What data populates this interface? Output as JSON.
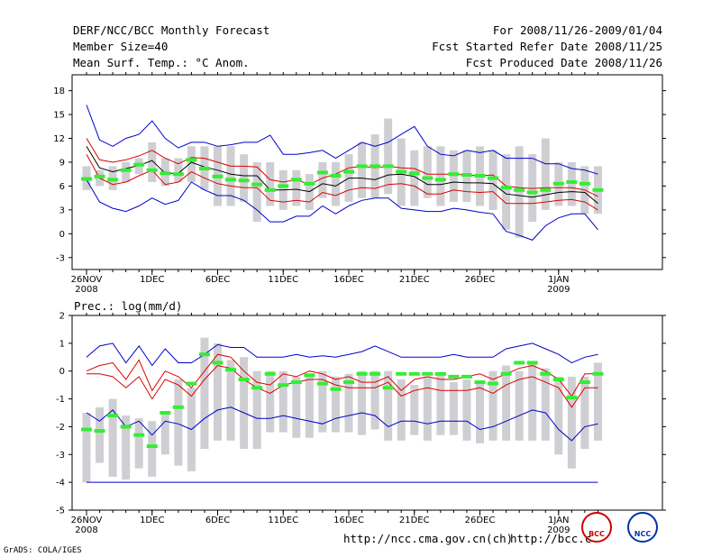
{
  "header": {
    "title": "DERF/NCC/BCC Monthly Forecast",
    "member_size": "Member Size=40",
    "variable": "Mean Surf. Temp.: °C Anom.",
    "period": "For 2008/11/26-2009/01/04",
    "started": "Fcst Started Refer Date 2008/11/25",
    "produced": "Fcst Produced Date 2008/11/26"
  },
  "footer": {
    "url1": "http://ncc.cma.gov.cn(ch)",
    "url2": "http://bcc.c",
    "grads": "GrADS: COLA/IGES",
    "logo1": "BCC",
    "logo2": "NCC"
  },
  "colors": {
    "max": "#0000cc",
    "pct": "#dd0000",
    "mean": "#000000",
    "obs": "#33ee33",
    "bar": "#cfcfd3",
    "base": "#0000cc"
  },
  "chart_data": [
    {
      "type": "box-line",
      "title": "Mean Surf. Temp.: °C Anom.",
      "xlabel": "",
      "ylabel": "°C Anom.",
      "ylim": [
        -4.5,
        20
      ],
      "yticks": [
        "18",
        "15",
        "12",
        "9",
        "6",
        "3",
        "0",
        "-3"
      ],
      "yvalues": [
        18,
        15,
        12,
        9,
        6,
        3,
        0,
        -3
      ],
      "xticks": [
        {
          "day": 0,
          "label": "26NOV",
          "sub": "2008"
        },
        {
          "day": 5,
          "label": "1DEC",
          "sub": ""
        },
        {
          "day": 10,
          "label": "6DEC",
          "sub": ""
        },
        {
          "day": 15,
          "label": "11DEC",
          "sub": ""
        },
        {
          "day": 20,
          "label": "16DEC",
          "sub": ""
        },
        {
          "day": 25,
          "label": "21DEC",
          "sub": ""
        },
        {
          "day": 30,
          "label": "26DEC",
          "sub": ""
        },
        {
          "day": 36,
          "label": "1JAN",
          "sub": "2009"
        }
      ],
      "n_days": 40,
      "series": [
        {
          "name": "max",
          "values": [
            16.2,
            11.8,
            11.0,
            12.0,
            12.5,
            14.2,
            12.0,
            10.8,
            11.5,
            11.5,
            11.0,
            11.2,
            11.5,
            11.5,
            12.4,
            10.0,
            10.0,
            10.2,
            10.5,
            9.5,
            10.5,
            11.5,
            11.0,
            11.5,
            12.5,
            13.5,
            11.0,
            10.0,
            9.8,
            10.5,
            10.2,
            10.5,
            9.5,
            9.5,
            9.5,
            8.8,
            8.8,
            8.2,
            8.0,
            7.5
          ]
        },
        {
          "name": "upper",
          "values": [
            12.0,
            9.3,
            9.0,
            9.3,
            9.8,
            10.5,
            9.5,
            8.8,
            9.6,
            9.5,
            9.0,
            8.5,
            8.5,
            8.4,
            6.8,
            6.5,
            6.8,
            6.2,
            7.0,
            7.5,
            8.3,
            8.5,
            8.3,
            8.5,
            8.3,
            8.2,
            7.5,
            7.5,
            7.5,
            7.4,
            7.3,
            7.4,
            6.0,
            5.8,
            5.7,
            5.8,
            5.8,
            5.8,
            5.5,
            4.7
          ]
        },
        {
          "name": "mean",
          "values": [
            11.0,
            8.3,
            7.8,
            8.2,
            8.6,
            9.2,
            7.6,
            7.6,
            9.0,
            8.4,
            8.0,
            7.5,
            7.3,
            7.3,
            5.5,
            5.5,
            5.6,
            5.3,
            6.3,
            6.0,
            7.0,
            7.0,
            6.8,
            7.4,
            7.5,
            7.2,
            6.2,
            6.2,
            6.5,
            6.4,
            6.4,
            6.3,
            5.0,
            4.8,
            4.6,
            4.9,
            5.2,
            5.3,
            5.2,
            3.8
          ]
        },
        {
          "name": "lower",
          "values": [
            10.0,
            7.0,
            6.2,
            6.5,
            7.3,
            8.0,
            6.2,
            6.5,
            7.8,
            7.0,
            6.3,
            6.0,
            5.8,
            5.8,
            4.2,
            4.0,
            4.2,
            4.0,
            5.2,
            4.8,
            5.5,
            5.8,
            5.7,
            6.2,
            6.3,
            6.0,
            5.0,
            5.0,
            5.5,
            5.3,
            5.2,
            5.3,
            3.8,
            3.8,
            3.8,
            4.0,
            4.2,
            4.3,
            4.0,
            3.0
          ]
        },
        {
          "name": "min",
          "values": [
            6.8,
            4.0,
            3.2,
            2.8,
            3.5,
            4.5,
            3.7,
            4.2,
            6.5,
            5.5,
            4.8,
            4.8,
            4.2,
            3.0,
            1.5,
            1.5,
            2.2,
            2.2,
            3.5,
            2.5,
            3.5,
            4.2,
            4.5,
            4.5,
            3.2,
            3.0,
            2.8,
            2.8,
            3.2,
            3.0,
            2.7,
            2.5,
            0.3,
            -0.2,
            -0.8,
            1.0,
            2.0,
            2.5,
            2.5,
            0.5
          ]
        },
        {
          "name": "obs",
          "values": [
            6.9,
            7.2,
            6.8,
            8.0,
            8.7,
            8.0,
            7.6,
            7.5,
            9.3,
            8.2,
            7.2,
            6.8,
            6.7,
            6.2,
            5.5,
            6.0,
            6.8,
            6.3,
            7.7,
            7.3,
            7.8,
            8.5,
            8.5,
            8.5,
            7.8,
            7.6,
            7.0,
            6.8,
            7.5,
            7.4,
            7.3,
            7.0,
            5.8,
            5.5,
            5.2,
            5.5,
            6.3,
            6.5,
            6.3,
            5.5
          ]
        }
      ],
      "bars": [
        [
          5.5,
          8.5
        ],
        [
          6.0,
          8.0
        ],
        [
          5.5,
          8.5
        ],
        [
          6.5,
          9.0
        ],
        [
          7.5,
          9.5
        ],
        [
          6.5,
          11.5
        ],
        [
          6.0,
          9.5
        ],
        [
          6.5,
          9.5
        ],
        [
          6.5,
          11.0
        ],
        [
          5.5,
          11.0
        ],
        [
          3.5,
          11.0
        ],
        [
          3.5,
          11.0
        ],
        [
          4.0,
          10.0
        ],
        [
          1.5,
          9.0
        ],
        [
          3.5,
          9.0
        ],
        [
          3.0,
          8.0
        ],
        [
          3.5,
          8.0
        ],
        [
          3.0,
          7.5
        ],
        [
          4.5,
          9.0
        ],
        [
          3.5,
          9.0
        ],
        [
          4.0,
          10.0
        ],
        [
          4.5,
          11.5
        ],
        [
          4.5,
          12.5
        ],
        [
          5.0,
          14.5
        ],
        [
          3.5,
          12.0
        ],
        [
          3.5,
          10.5
        ],
        [
          4.5,
          11.0
        ],
        [
          3.5,
          11.0
        ],
        [
          4.0,
          10.5
        ],
        [
          4.0,
          10.5
        ],
        [
          3.5,
          11.0
        ],
        [
          3.0,
          10.5
        ],
        [
          0.5,
          10.0
        ],
        [
          -0.5,
          11.0
        ],
        [
          1.5,
          10.0
        ],
        [
          3.0,
          12.0
        ],
        [
          3.5,
          9.0
        ],
        [
          3.5,
          9.0
        ],
        [
          2.5,
          8.5
        ],
        [
          2.5,
          8.5
        ]
      ]
    },
    {
      "type": "box-line",
      "title": "Prec.: log(mm/d)",
      "xlabel": "",
      "ylabel": "log(mm/d)",
      "ylim": [
        -5,
        2
      ],
      "yticks": [
        "2",
        "1",
        "0",
        "-1",
        "-2",
        "-3",
        "-4",
        "-5"
      ],
      "yvalues": [
        2,
        1,
        0,
        -1,
        -2,
        -3,
        -4,
        -5
      ],
      "xticks": [
        {
          "day": 0,
          "label": "26NOV",
          "sub": "2008"
        },
        {
          "day": 5,
          "label": "1DEC",
          "sub": ""
        },
        {
          "day": 10,
          "label": "6DEC",
          "sub": ""
        },
        {
          "day": 15,
          "label": "11DEC",
          "sub": ""
        },
        {
          "day": 20,
          "label": "16DEC",
          "sub": ""
        },
        {
          "day": 25,
          "label": "21DEC",
          "sub": ""
        },
        {
          "day": 30,
          "label": "26DEC",
          "sub": ""
        },
        {
          "day": 36,
          "label": "1JAN",
          "sub": "2009"
        }
      ],
      "n_days": 40,
      "baseline": -4,
      "series": [
        {
          "name": "max",
          "values": [
            0.5,
            0.9,
            1.0,
            0.3,
            0.9,
            0.2,
            0.8,
            0.3,
            0.3,
            0.6,
            0.95,
            0.85,
            0.85,
            0.5,
            0.5,
            0.5,
            0.6,
            0.5,
            0.55,
            0.5,
            0.6,
            0.7,
            0.9,
            0.7,
            0.5,
            0.5,
            0.5,
            0.5,
            0.6,
            0.5,
            0.5,
            0.5,
            0.8,
            0.9,
            1.0,
            0.8,
            0.6,
            0.3,
            0.5,
            0.6
          ]
        },
        {
          "name": "upper",
          "values": [
            0.0,
            0.2,
            0.3,
            -0.3,
            0.4,
            -0.7,
            0.0,
            -0.2,
            -0.6,
            0.0,
            0.6,
            0.5,
            0.0,
            -0.4,
            -0.5,
            -0.1,
            -0.2,
            0.0,
            -0.1,
            -0.3,
            -0.2,
            -0.4,
            -0.4,
            -0.2,
            -0.7,
            -0.3,
            -0.2,
            -0.3,
            -0.3,
            -0.2,
            -0.1,
            -0.3,
            -0.1,
            0.1,
            0.2,
            0.0,
            -0.3,
            -0.9,
            -0.1,
            -0.1
          ]
        },
        {
          "name": "lower",
          "values": [
            -0.1,
            -0.1,
            -0.2,
            -0.6,
            -0.2,
            -1.0,
            -0.3,
            -0.5,
            -0.9,
            -0.3,
            0.2,
            0.1,
            -0.3,
            -0.6,
            -0.8,
            -0.5,
            -0.4,
            -0.3,
            -0.3,
            -0.5,
            -0.6,
            -0.6,
            -0.6,
            -0.4,
            -0.9,
            -0.7,
            -0.6,
            -0.7,
            -0.7,
            -0.7,
            -0.6,
            -0.8,
            -0.5,
            -0.3,
            -0.2,
            -0.4,
            -0.6,
            -1.3,
            -0.6,
            -0.6
          ]
        },
        {
          "name": "min",
          "values": [
            -1.5,
            -1.8,
            -1.4,
            -2.0,
            -1.8,
            -2.3,
            -1.8,
            -1.9,
            -2.1,
            -1.7,
            -1.4,
            -1.3,
            -1.5,
            -1.7,
            -1.7,
            -1.6,
            -1.7,
            -1.8,
            -1.9,
            -1.7,
            -1.6,
            -1.5,
            -1.6,
            -2.0,
            -1.8,
            -1.8,
            -1.9,
            -1.8,
            -1.8,
            -1.8,
            -2.1,
            -2.0,
            -1.8,
            -1.6,
            -1.4,
            -1.5,
            -2.1,
            -2.5,
            -2.0,
            -1.9
          ]
        },
        {
          "name": "obs",
          "values": [
            -2.1,
            -2.15,
            -1.6,
            -2.0,
            -2.3,
            -2.7,
            -1.5,
            -1.3,
            -0.45,
            0.6,
            0.3,
            0.05,
            -0.3,
            -0.6,
            -0.1,
            -0.5,
            -0.4,
            -0.15,
            -0.45,
            -0.65,
            -0.4,
            -0.1,
            -0.1,
            -0.6,
            -0.1,
            -0.1,
            -0.1,
            -0.1,
            -0.2,
            -0.2,
            -0.4,
            -0.45,
            -0.1,
            0.3,
            0.3,
            -0.1,
            -0.3,
            -0.95,
            -0.4,
            -0.1
          ]
        }
      ],
      "bars": [
        [
          -4.0,
          -1.5
        ],
        [
          -3.3,
          -1.3
        ],
        [
          -3.8,
          -1.0
        ],
        [
          -3.9,
          -1.6
        ],
        [
          -3.5,
          -1.7
        ],
        [
          -3.8,
          -1.8
        ],
        [
          -3.0,
          -1.5
        ],
        [
          -3.4,
          -0.3
        ],
        [
          -3.6,
          -0.6
        ],
        [
          -2.8,
          1.2
        ],
        [
          -2.5,
          1.0
        ],
        [
          -2.5,
          0.4
        ],
        [
          -2.8,
          0.5
        ],
        [
          -2.8,
          0.0
        ],
        [
          -2.2,
          0.0
        ],
        [
          -2.2,
          0.0
        ],
        [
          -2.4,
          -0.2
        ],
        [
          -2.4,
          -0.2
        ],
        [
          -2.2,
          0.0
        ],
        [
          -2.2,
          -0.2
        ],
        [
          -2.2,
          -0.1
        ],
        [
          -2.3,
          0.0
        ],
        [
          -2.1,
          0.0
        ],
        [
          -2.5,
          0.0
        ],
        [
          -2.5,
          -0.3
        ],
        [
          -2.3,
          -0.5
        ],
        [
          -2.5,
          -0.2
        ],
        [
          -2.3,
          -0.1
        ],
        [
          -2.3,
          -0.4
        ],
        [
          -2.5,
          -0.3
        ],
        [
          -2.6,
          -0.4
        ],
        [
          -2.5,
          0.0
        ],
        [
          -2.5,
          0.2
        ],
        [
          -2.5,
          0.0
        ],
        [
          -2.5,
          0.3
        ],
        [
          -2.5,
          0.1
        ],
        [
          -3.0,
          -0.2
        ],
        [
          -3.5,
          -0.2
        ],
        [
          -2.8,
          -0.2
        ],
        [
          -2.5,
          0.3
        ]
      ]
    }
  ]
}
